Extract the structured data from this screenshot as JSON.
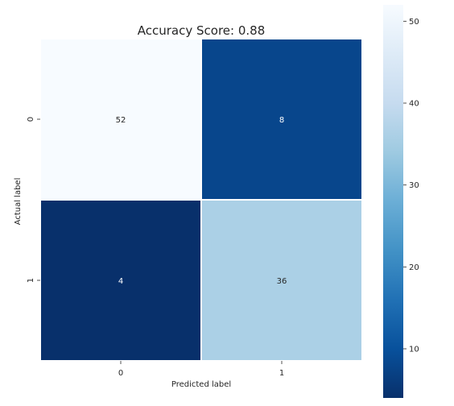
{
  "chart_data": {
    "type": "heatmap",
    "title": "Accuracy Score: 0.88",
    "xlabel": "Predicted label",
    "ylabel": "Actual label",
    "x_categories": [
      "0",
      "1"
    ],
    "y_categories": [
      "0",
      "1"
    ],
    "matrix": [
      [
        52,
        8
      ],
      [
        4,
        36
      ]
    ],
    "colormap": "Blues_r",
    "colorbar": {
      "range": [
        4,
        52
      ],
      "ticks": [
        10,
        20,
        30,
        40,
        50
      ]
    },
    "annotation_colors": {
      "light_cell": "#262626",
      "dark_cell": "#ffffff"
    }
  }
}
